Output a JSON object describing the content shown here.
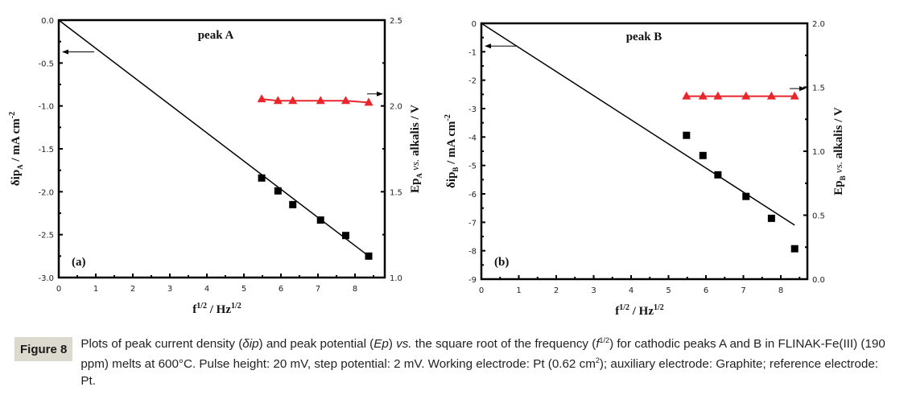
{
  "chart_data": [
    {
      "type": "scatter",
      "panel_label": "(a)",
      "annotation": "peak A",
      "xlabel": "f^1/2 / Hz^1/2",
      "ylabel_left": "δip_A / mA cm^-2",
      "ylabel_right": "Ep_A vs. alkalis / V",
      "xlim": [
        0,
        8.8
      ],
      "ylim_left": [
        -3.0,
        0.0
      ],
      "ylim_right": [
        1.0,
        2.5
      ],
      "x_ticks": [
        "0",
        "1",
        "2",
        "3",
        "4",
        "5",
        "6",
        "7",
        "8"
      ],
      "y_ticks_left": [
        "0.0",
        "-0.5",
        "-1.0",
        "-1.5",
        "-2.0",
        "-2.5",
        "-3.0"
      ],
      "y_ticks_right": [
        "2.5",
        "2.0",
        "1.5",
        "1.0"
      ],
      "grid": false,
      "series": [
        {
          "name": "δip (squares, left axis)",
          "axis": "left",
          "marker": "square",
          "color": "#000000",
          "x": [
            5.48,
            5.92,
            6.32,
            7.07,
            7.75,
            8.37
          ],
          "y": [
            -1.84,
            -1.99,
            -2.15,
            -2.33,
            -2.51,
            -2.75
          ]
        },
        {
          "name": "linear fit",
          "axis": "left",
          "marker": "line",
          "color": "#000000",
          "x": [
            0,
            8.37
          ],
          "y": [
            0.0,
            -2.75
          ]
        },
        {
          "name": "Ep (triangles, right axis)",
          "axis": "right",
          "marker": "triangle",
          "color": "#e8262b",
          "x": [
            5.48,
            5.92,
            6.32,
            7.07,
            7.75,
            8.37
          ],
          "y": [
            2.04,
            2.03,
            2.03,
            2.03,
            2.03,
            2.02
          ]
        }
      ],
      "arrows": [
        {
          "points_to": "left",
          "at_y": -0.37,
          "axis": "left"
        },
        {
          "points_to": "right",
          "at_y": 2.07,
          "axis": "right"
        }
      ]
    },
    {
      "type": "scatter",
      "panel_label": "(b)",
      "annotation": "peak B",
      "xlabel": "f^1/2 / Hz^1/2",
      "ylabel_left": "δip_B / mA cm^-2",
      "ylabel_right": "Ep_B vs. alkalis / V",
      "xlim": [
        0,
        8.8
      ],
      "ylim_left": [
        -9,
        0
      ],
      "ylim_right": [
        0.0,
        2.0
      ],
      "x_ticks": [
        "0",
        "1",
        "2",
        "3",
        "4",
        "5",
        "6",
        "7",
        "8"
      ],
      "y_ticks_left": [
        "0",
        "-1",
        "-2",
        "-3",
        "-4",
        "-5",
        "-6",
        "-7",
        "-8",
        "-9"
      ],
      "y_ticks_right": [
        "2.0",
        "1.5",
        "1.0",
        "0.5",
        "0.0"
      ],
      "grid": false,
      "series": [
        {
          "name": "δip (squares, left axis)",
          "axis": "left",
          "marker": "square",
          "color": "#000000",
          "x": [
            5.48,
            5.92,
            6.32,
            7.07,
            7.75,
            8.37
          ],
          "y": [
            -3.94,
            -4.65,
            -5.33,
            -6.09,
            -6.86,
            -7.93
          ]
        },
        {
          "name": "linear fit",
          "axis": "left",
          "marker": "line",
          "color": "#000000",
          "x": [
            0,
            8.37
          ],
          "y": [
            0.0,
            -7.1
          ]
        },
        {
          "name": "Ep (triangles, right axis)",
          "axis": "right",
          "marker": "triangle",
          "color": "#e8262b",
          "x": [
            5.48,
            5.92,
            6.32,
            7.07,
            7.75,
            8.37
          ],
          "y": [
            1.43,
            1.43,
            1.43,
            1.43,
            1.43,
            1.43
          ]
        }
      ],
      "arrows": [
        {
          "points_to": "left",
          "at_y": -0.8,
          "axis": "left"
        },
        {
          "points_to": "right",
          "at_y": 1.49,
          "axis": "right"
        }
      ]
    }
  ],
  "caption": {
    "badge": "Figure 8",
    "parts": {
      "p1": "Plots of peak current density (",
      "dip": "δip",
      "p2": ") and peak potential (",
      "ep": "Ep",
      "p3": ") ",
      "vs": "vs.",
      "p4": " the square root of the frequency (",
      "f": "f",
      "half": "1/2",
      "p5": ") for cathodic peaks A and B in FLINAK-Fe(III) (190 ppm) melts at 600°C. Pulse height: 20 mV, step potential: 2 mV. Working electrode: Pt (0.62 cm",
      "sq": "2",
      "p6": "); auxiliary electrode: Graphite; reference electrode: Pt."
    }
  }
}
